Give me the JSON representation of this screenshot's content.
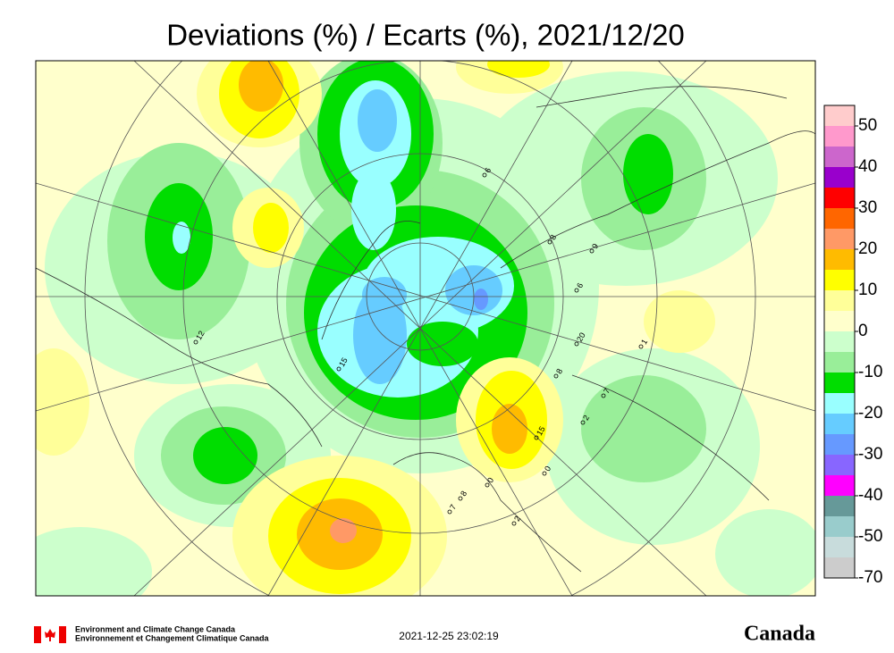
{
  "title": "Deviations (%) / Ecarts (%), 2021/12/20",
  "legend": {
    "levels": [
      50,
      40,
      30,
      20,
      10,
      0,
      -10,
      -20,
      -30,
      -40,
      -50,
      -70
    ],
    "colors": [
      "#ffcccc",
      "#ff99cc",
      "#cc66cc",
      "#9900cc",
      "#ff0000",
      "#ff6600",
      "#ff9966",
      "#ffbb00",
      "#ffff00",
      "#ffff99",
      "#ffffcc",
      "#ccffcc",
      "#99ee99",
      "#00dd00",
      "#99ffff",
      "#66ccff",
      "#6699ff",
      "#8866ff",
      "#ff00ff",
      "#669999",
      "#99cccc",
      "#c8dcdc",
      "#cccccc"
    ]
  },
  "stations": [
    "6",
    "8",
    "6",
    "9",
    "20",
    "1",
    "8",
    "7",
    "2",
    "15",
    "0",
    "0",
    "8",
    "7",
    "2",
    "15",
    "12"
  ],
  "footer": {
    "agency_en": "Environment and Climate Change Canada",
    "agency_fr": "Environnement et Changement Climatique Canada",
    "timestamp": "2021-12-25 23:02:19",
    "wordmark": "Canada"
  }
}
